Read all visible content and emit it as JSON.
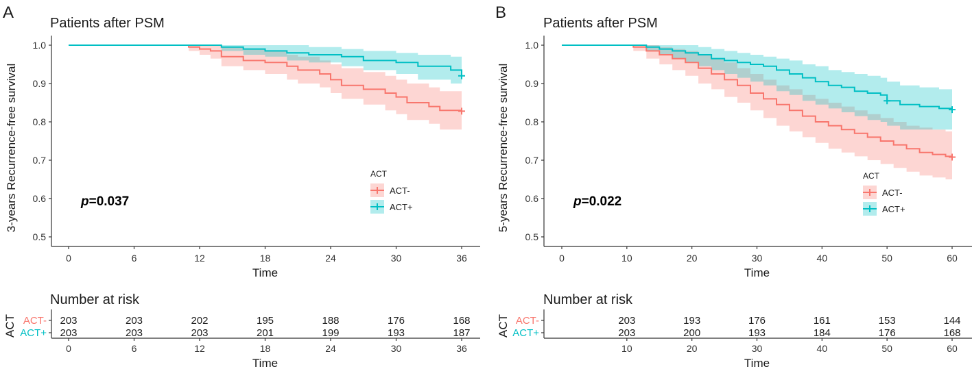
{
  "colors": {
    "act_minus": "#F8766D",
    "act_plus": "#00BFC4"
  },
  "chart_data": [
    {
      "type": "line",
      "panel_label": "A",
      "title": "Patients after PSM",
      "xlabel": "Time",
      "ylabel": "3-years Recurrence-free survival",
      "xlim": [
        0,
        36
      ],
      "ylim": [
        0.5,
        1.0
      ],
      "x_ticks": [
        0,
        6,
        12,
        18,
        24,
        30,
        36
      ],
      "x_tick_labels": [
        "0",
        "6",
        "12",
        "18",
        "24",
        "30",
        "36"
      ],
      "y_ticks": [
        0.5,
        0.6,
        0.7,
        0.8,
        0.9,
        1.0
      ],
      "y_tick_labels": [
        "0.5",
        "0.6",
        "0.7",
        "0.8",
        "0.9",
        "1.0"
      ],
      "p_label": "p",
      "p_value": "=0.037",
      "legend": {
        "title": "ACT",
        "entries": [
          "ACT-",
          "ACT+"
        ],
        "position": "right"
      },
      "series": [
        {
          "name": "ACT-",
          "x": [
            0,
            11,
            12,
            13,
            14,
            16,
            18,
            20,
            21,
            23,
            24,
            25,
            27,
            29,
            30,
            31,
            33,
            34,
            36
          ],
          "y": [
            1.0,
            0.995,
            0.99,
            0.985,
            0.97,
            0.96,
            0.955,
            0.945,
            0.935,
            0.925,
            0.91,
            0.895,
            0.885,
            0.875,
            0.865,
            0.85,
            0.84,
            0.83,
            0.828
          ],
          "lower": [
            1.0,
            0.985,
            0.975,
            0.965,
            0.945,
            0.935,
            0.925,
            0.91,
            0.9,
            0.89,
            0.875,
            0.86,
            0.845,
            0.83,
            0.82,
            0.805,
            0.795,
            0.78,
            0.778
          ],
          "upper": [
            1.0,
            1.0,
            1.0,
            1.0,
            0.995,
            0.99,
            0.985,
            0.975,
            0.97,
            0.96,
            0.95,
            0.94,
            0.93,
            0.92,
            0.91,
            0.9,
            0.89,
            0.88,
            0.878
          ],
          "censor": [
            [
              36,
              0.828
            ]
          ]
        },
        {
          "name": "ACT+",
          "x": [
            0,
            14,
            16,
            18,
            20,
            22,
            25,
            27,
            30,
            32,
            35,
            36
          ],
          "y": [
            1.0,
            0.995,
            0.99,
            0.985,
            0.98,
            0.975,
            0.97,
            0.96,
            0.955,
            0.945,
            0.935,
            0.92
          ],
          "lower": [
            1.0,
            0.985,
            0.975,
            0.97,
            0.96,
            0.955,
            0.945,
            0.935,
            0.925,
            0.91,
            0.9,
            0.9
          ],
          "upper": [
            1.0,
            1.0,
            1.0,
            1.0,
            1.0,
            0.995,
            0.99,
            0.985,
            0.98,
            0.975,
            0.97,
            0.955
          ],
          "censor": [
            [
              36,
              0.92
            ]
          ]
        }
      ],
      "risk_table": {
        "title": "Number at risk",
        "strata_title": "ACT",
        "xlabel": "Time",
        "x_ticks": [
          0,
          6,
          12,
          18,
          24,
          30,
          36
        ],
        "x_tick_labels": [
          "0",
          "6",
          "12",
          "18",
          "24",
          "30",
          "36"
        ],
        "rows": [
          {
            "name": "ACT-",
            "times": [
              0,
              6,
              12,
              18,
              24,
              30,
              36
            ],
            "values": [
              "203",
              "203",
              "202",
              "195",
              "188",
              "176",
              "168"
            ]
          },
          {
            "name": "ACT+",
            "times": [
              0,
              6,
              12,
              18,
              24,
              30,
              36
            ],
            "values": [
              "203",
              "203",
              "203",
              "201",
              "199",
              "193",
              "187"
            ]
          }
        ]
      }
    },
    {
      "type": "line",
      "panel_label": "B",
      "title": "Patients after PSM",
      "xlabel": "Time",
      "ylabel": "5-years Recurrence-free survival",
      "xlim": [
        0,
        60
      ],
      "ylim": [
        0.5,
        1.0
      ],
      "x_ticks": [
        0,
        10,
        20,
        30,
        40,
        50,
        60
      ],
      "x_tick_labels": [
        "0",
        "10",
        "20",
        "30",
        "40",
        "50",
        "60"
      ],
      "y_ticks": [
        0.5,
        0.6,
        0.7,
        0.8,
        0.9,
        1.0
      ],
      "y_tick_labels": [
        "0.5",
        "0.6",
        "0.7",
        "0.8",
        "0.9",
        "1.0"
      ],
      "p_label": "p",
      "p_value": "=0.022",
      "legend": {
        "title": "ACT",
        "entries": [
          "ACT-",
          "ACT+"
        ],
        "position": "right"
      },
      "series": [
        {
          "name": "ACT-",
          "x": [
            0,
            11,
            13,
            15,
            17,
            19,
            21,
            23,
            25,
            27,
            29,
            31,
            33,
            35,
            37,
            39,
            41,
            43,
            45,
            47,
            49,
            51,
            53,
            55,
            57,
            59,
            60
          ],
          "y": [
            1.0,
            0.995,
            0.985,
            0.975,
            0.965,
            0.955,
            0.94,
            0.925,
            0.91,
            0.895,
            0.875,
            0.86,
            0.845,
            0.83,
            0.815,
            0.8,
            0.79,
            0.78,
            0.77,
            0.76,
            0.75,
            0.74,
            0.73,
            0.72,
            0.715,
            0.71,
            0.708
          ],
          "lower": [
            1.0,
            0.985,
            0.965,
            0.95,
            0.935,
            0.92,
            0.9,
            0.885,
            0.865,
            0.85,
            0.83,
            0.81,
            0.79,
            0.775,
            0.76,
            0.745,
            0.73,
            0.72,
            0.71,
            0.7,
            0.69,
            0.68,
            0.67,
            0.66,
            0.655,
            0.65,
            0.65
          ],
          "upper": [
            1.0,
            1.0,
            1.0,
            0.995,
            0.99,
            0.985,
            0.975,
            0.965,
            0.955,
            0.94,
            0.925,
            0.91,
            0.895,
            0.885,
            0.87,
            0.86,
            0.85,
            0.84,
            0.83,
            0.82,
            0.81,
            0.8,
            0.79,
            0.785,
            0.78,
            0.775,
            0.775
          ],
          "censor": [
            [
              60,
              0.708
            ]
          ]
        },
        {
          "name": "ACT+",
          "x": [
            0,
            13,
            15,
            17,
            19,
            21,
            23,
            25,
            27,
            29,
            31,
            33,
            35,
            37,
            39,
            41,
            43,
            45,
            47,
            49,
            50,
            52,
            55,
            58,
            60
          ],
          "y": [
            1.0,
            0.995,
            0.99,
            0.985,
            0.98,
            0.975,
            0.965,
            0.96,
            0.955,
            0.95,
            0.945,
            0.935,
            0.925,
            0.915,
            0.905,
            0.895,
            0.89,
            0.88,
            0.875,
            0.87,
            0.855,
            0.845,
            0.84,
            0.835,
            0.832
          ],
          "lower": [
            1.0,
            0.985,
            0.975,
            0.965,
            0.955,
            0.945,
            0.935,
            0.925,
            0.915,
            0.905,
            0.895,
            0.88,
            0.87,
            0.855,
            0.845,
            0.835,
            0.825,
            0.815,
            0.805,
            0.8,
            0.79,
            0.78,
            0.78,
            0.78,
            0.78
          ],
          "upper": [
            1.0,
            1.0,
            1.0,
            1.0,
            1.0,
            0.995,
            0.99,
            0.985,
            0.98,
            0.975,
            0.97,
            0.965,
            0.96,
            0.95,
            0.945,
            0.935,
            0.93,
            0.925,
            0.92,
            0.915,
            0.905,
            0.895,
            0.89,
            0.885,
            0.885
          ],
          "censor": [
            [
              50,
              0.855
            ],
            [
              60,
              0.832
            ]
          ]
        }
      ],
      "risk_table": {
        "title": "Number at risk",
        "strata_title": "ACT",
        "xlabel": "Time",
        "x_ticks": [
          10,
          20,
          30,
          40,
          50,
          60
        ],
        "x_tick_labels": [
          "10",
          "20",
          "30",
          "40",
          "50",
          "60"
        ],
        "rows": [
          {
            "name": "ACT-",
            "times": [
              10,
              20,
              30,
              40,
              50,
              60
            ],
            "values": [
              "203",
              "193",
              "176",
              "161",
              "153",
              "144"
            ]
          },
          {
            "name": "ACT+",
            "times": [
              10,
              20,
              30,
              40,
              50,
              60
            ],
            "values": [
              "203",
              "200",
              "193",
              "184",
              "176",
              "168"
            ]
          }
        ]
      }
    }
  ]
}
